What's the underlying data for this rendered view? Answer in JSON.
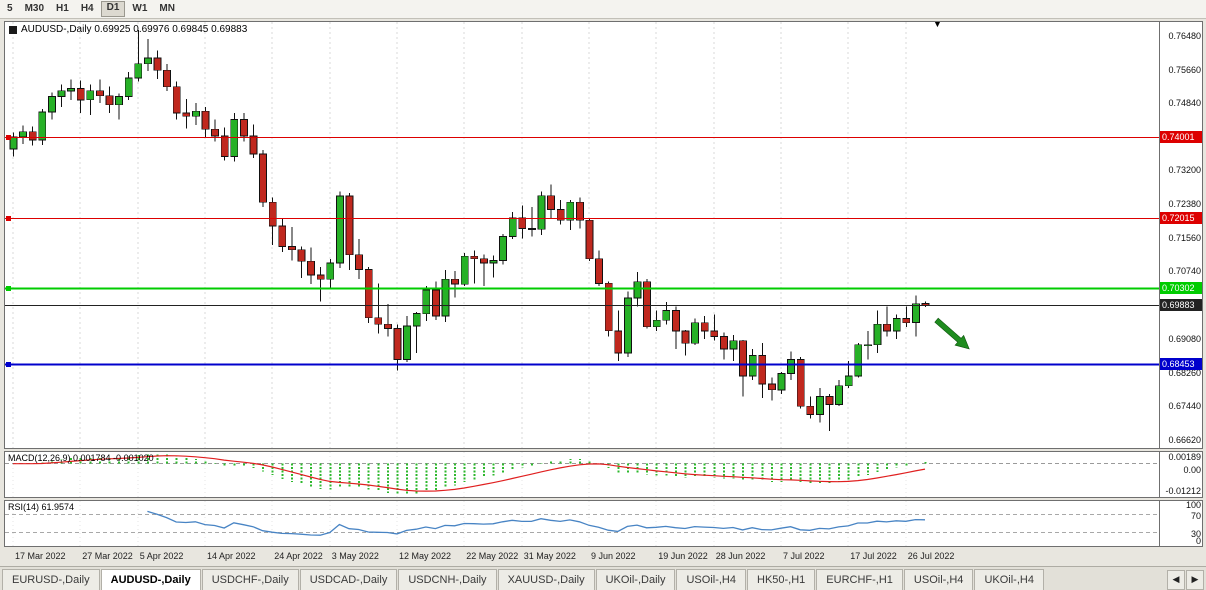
{
  "toolbar": {
    "timeframes": [
      "5",
      "M30",
      "H1",
      "H4",
      "D1",
      "W1",
      "MN"
    ],
    "active": "D1"
  },
  "chart": {
    "legend": "AUDUSD-,Daily 0.69925 0.69976 0.69845 0.69883",
    "macd_label": "MACD(12,26,9) 0.001784 -0.001020",
    "rsi_label": "RSI(14) 61.9574",
    "shift_marker": "▼"
  },
  "chart_data": {
    "type": "candlestick",
    "symbol": "AUDUSD",
    "period": "Daily",
    "title": "AUDUSD-,Daily",
    "latest_ohlc": {
      "open": 0.69925,
      "high": 0.69976,
      "low": 0.69845,
      "close": 0.69883
    },
    "y_axis": {
      "top": 0.768,
      "bottom": 0.664,
      "ticks": [
        "0.76480",
        "0.75660",
        "0.74840",
        "0.73200",
        "0.72380",
        "0.71560",
        "0.70740",
        "0.69080",
        "0.68260",
        "0.67440",
        "0.66620"
      ]
    },
    "x_axis": {
      "ticks": [
        {
          "label": "17 Mar 2022",
          "index": 0
        },
        {
          "label": "27 Mar 2022",
          "index": 7
        },
        {
          "label": "5 Apr 2022",
          "index": 13
        },
        {
          "label": "14 Apr 2022",
          "index": 20
        },
        {
          "label": "24 Apr 2022",
          "index": 27
        },
        {
          "label": "3 May 2022",
          "index": 33
        },
        {
          "label": "12 May 2022",
          "index": 40
        },
        {
          "label": "22 May 2022",
          "index": 47
        },
        {
          "label": "31 May 2022",
          "index": 53
        },
        {
          "label": "9 Jun 2022",
          "index": 60
        },
        {
          "label": "19 Jun 2022",
          "index": 67
        },
        {
          "label": "28 Jun 2022",
          "index": 73
        },
        {
          "label": "7 Jul 2022",
          "index": 80
        },
        {
          "label": "17 Jul 2022",
          "index": 87
        },
        {
          "label": "26 Jul 2022",
          "index": 93
        }
      ]
    },
    "horizontal_lines": [
      {
        "label": "0.74001",
        "price": 0.74001,
        "color": "#dd0000",
        "width": 1.4,
        "handle": true
      },
      {
        "label": "0.72015",
        "price": 0.72015,
        "color": "#dd0000",
        "width": 1.4,
        "handle": true
      },
      {
        "label": "0.70302",
        "price": 0.70302,
        "color": "#00cc00",
        "width": 2.4,
        "handle": true
      },
      {
        "label": "0.69883",
        "price": 0.69883,
        "color": "#222222",
        "width": 1,
        "handle": false
      },
      {
        "label": "0.68453",
        "price": 0.68453,
        "color": "#0000cc",
        "width": 2,
        "handle": true
      }
    ],
    "annotations": {
      "arrow": {
        "type": "trend-arrow",
        "direction": "down-right",
        "color": "#1f8c1f",
        "from": {
          "index": 96.2,
          "price": 0.6952
        },
        "to": {
          "index": 99.6,
          "price": 0.6882
        }
      }
    },
    "indicators": {
      "macd": {
        "name": "MACD",
        "params": [
          12,
          26,
          9
        ],
        "values": [
          0.001784,
          -0.00102
        ],
        "axis_labels": [
          "0.00189",
          "0.00",
          "-0.01212"
        ],
        "histogram_color": "#2db82d",
        "signal_color": "#e02020"
      },
      "rsi": {
        "name": "RSI",
        "period": 14,
        "value": 61.9574,
        "axis_labels": [
          "100",
          "70",
          "30",
          "0"
        ],
        "levels": [
          70,
          30
        ],
        "line_color": "#4884c4"
      }
    },
    "colors": {
      "bull": "#27b127",
      "bear": "#c0281e",
      "wick": "#111111",
      "grid": "#d8d8d8",
      "background": "#ffffff"
    },
    "candles": [
      [
        0.737,
        0.741,
        0.7352,
        0.74
      ],
      [
        0.74,
        0.7427,
        0.7382,
        0.7412
      ],
      [
        0.7412,
        0.7425,
        0.7378,
        0.7392
      ],
      [
        0.7392,
        0.7468,
        0.738,
        0.746
      ],
      [
        0.746,
        0.7508,
        0.7442,
        0.7498
      ],
      [
        0.7498,
        0.7527,
        0.7472,
        0.7512
      ],
      [
        0.7512,
        0.754,
        0.749,
        0.7518
      ],
      [
        0.7518,
        0.7537,
        0.7458,
        0.749
      ],
      [
        0.749,
        0.7528,
        0.7453,
        0.7512
      ],
      [
        0.7512,
        0.754,
        0.7482,
        0.75
      ],
      [
        0.75,
        0.7522,
        0.7458,
        0.7478
      ],
      [
        0.7478,
        0.7506,
        0.7442,
        0.7498
      ],
      [
        0.7498,
        0.7558,
        0.749,
        0.7543
      ],
      [
        0.7543,
        0.7661,
        0.7535,
        0.7578
      ],
      [
        0.7578,
        0.7638,
        0.756,
        0.7592
      ],
      [
        0.7592,
        0.761,
        0.7541,
        0.7562
      ],
      [
        0.7562,
        0.7578,
        0.7512,
        0.7522
      ],
      [
        0.7522,
        0.7535,
        0.7442,
        0.7458
      ],
      [
        0.7458,
        0.7492,
        0.742,
        0.745
      ],
      [
        0.745,
        0.7482,
        0.7428,
        0.7462
      ],
      [
        0.7462,
        0.7472,
        0.7398,
        0.7418
      ],
      [
        0.7418,
        0.7442,
        0.7388,
        0.7402
      ],
      [
        0.7402,
        0.7422,
        0.7342,
        0.7352
      ],
      [
        0.7352,
        0.7458,
        0.734,
        0.7442
      ],
      [
        0.7442,
        0.7458,
        0.7388,
        0.7402
      ],
      [
        0.7402,
        0.743,
        0.7348,
        0.7358
      ],
      [
        0.7358,
        0.7368,
        0.7228,
        0.724
      ],
      [
        0.724,
        0.7252,
        0.7135,
        0.7182
      ],
      [
        0.7182,
        0.72,
        0.7118,
        0.7132
      ],
      [
        0.7132,
        0.718,
        0.7098,
        0.7124
      ],
      [
        0.7124,
        0.7132,
        0.7055,
        0.7096
      ],
      [
        0.7096,
        0.713,
        0.704,
        0.7062
      ],
      [
        0.7062,
        0.7082,
        0.6998,
        0.7052
      ],
      [
        0.7052,
        0.7102,
        0.7028,
        0.7092
      ],
      [
        0.7092,
        0.7266,
        0.708,
        0.7255
      ],
      [
        0.7255,
        0.7262,
        0.7075,
        0.7112
      ],
      [
        0.7112,
        0.715,
        0.7052,
        0.7076
      ],
      [
        0.7076,
        0.7082,
        0.6945,
        0.6958
      ],
      [
        0.6958,
        0.7042,
        0.692,
        0.6942
      ],
      [
        0.6942,
        0.6992,
        0.6912,
        0.6932
      ],
      [
        0.6932,
        0.6942,
        0.6829,
        0.6856
      ],
      [
        0.6856,
        0.6962,
        0.685,
        0.6938
      ],
      [
        0.6938,
        0.6972,
        0.6872,
        0.6968
      ],
      [
        0.6968,
        0.7036,
        0.695,
        0.7026
      ],
      [
        0.7026,
        0.7046,
        0.6952,
        0.6962
      ],
      [
        0.6962,
        0.7074,
        0.6948,
        0.7052
      ],
      [
        0.7052,
        0.7072,
        0.7008,
        0.704
      ],
      [
        0.704,
        0.7116,
        0.7036,
        0.7108
      ],
      [
        0.7108,
        0.7122,
        0.7042,
        0.7102
      ],
      [
        0.7102,
        0.7112,
        0.7036,
        0.7092
      ],
      [
        0.7092,
        0.711,
        0.7056,
        0.7098
      ],
      [
        0.7098,
        0.7162,
        0.7088,
        0.7156
      ],
      [
        0.7156,
        0.7216,
        0.715,
        0.7202
      ],
      [
        0.7202,
        0.7232,
        0.7152,
        0.7176
      ],
      [
        0.7176,
        0.7228,
        0.7156,
        0.7174
      ],
      [
        0.7174,
        0.7266,
        0.716,
        0.7256
      ],
      [
        0.7256,
        0.7283,
        0.7202,
        0.7222
      ],
      [
        0.7222,
        0.7246,
        0.7186,
        0.7196
      ],
      [
        0.7196,
        0.7246,
        0.7172,
        0.724
      ],
      [
        0.724,
        0.7252,
        0.7176,
        0.7196
      ],
      [
        0.7196,
        0.7202,
        0.7096,
        0.7102
      ],
      [
        0.7102,
        0.7122,
        0.7036,
        0.7042
      ],
      [
        0.7042,
        0.7046,
        0.6912,
        0.6926
      ],
      [
        0.6926,
        0.6976,
        0.6852,
        0.6872
      ],
      [
        0.6872,
        0.7022,
        0.6862,
        0.7006
      ],
      [
        0.7006,
        0.707,
        0.6986,
        0.7046
      ],
      [
        0.7046,
        0.7052,
        0.6932,
        0.6936
      ],
      [
        0.6936,
        0.6976,
        0.6926,
        0.6952
      ],
      [
        0.6952,
        0.6996,
        0.6942,
        0.6976
      ],
      [
        0.6976,
        0.6986,
        0.6882,
        0.6926
      ],
      [
        0.6926,
        0.6928,
        0.6866,
        0.6896
      ],
      [
        0.6896,
        0.6956,
        0.6892,
        0.6946
      ],
      [
        0.6946,
        0.6962,
        0.6906,
        0.6926
      ],
      [
        0.6926,
        0.6966,
        0.6902,
        0.6912
      ],
      [
        0.6912,
        0.6922,
        0.6856,
        0.6882
      ],
      [
        0.6882,
        0.6916,
        0.6852,
        0.6902
      ],
      [
        0.6902,
        0.6904,
        0.6766,
        0.6816
      ],
      [
        0.6816,
        0.6882,
        0.6806,
        0.6866
      ],
      [
        0.6866,
        0.6896,
        0.6762,
        0.6796
      ],
      [
        0.6796,
        0.6812,
        0.6756,
        0.6782
      ],
      [
        0.6782,
        0.6826,
        0.6772,
        0.6822
      ],
      [
        0.6822,
        0.6876,
        0.6806,
        0.6856
      ],
      [
        0.6856,
        0.6862,
        0.6736,
        0.6742
      ],
      [
        0.6742,
        0.6766,
        0.6712,
        0.6722
      ],
      [
        0.6722,
        0.6786,
        0.6702,
        0.6766
      ],
      [
        0.6766,
        0.6772,
        0.6681,
        0.6746
      ],
      [
        0.6746,
        0.6806,
        0.6742,
        0.6792
      ],
      [
        0.6792,
        0.6852,
        0.6786,
        0.6816
      ],
      [
        0.6816,
        0.6896,
        0.6812,
        0.6892
      ],
      [
        0.6892,
        0.6926,
        0.6856,
        0.6892
      ],
      [
        0.6892,
        0.6976,
        0.6872,
        0.6942
      ],
      [
        0.6942,
        0.6986,
        0.6912,
        0.6926
      ],
      [
        0.6926,
        0.6966,
        0.6906,
        0.6956
      ],
      [
        0.6956,
        0.6986,
        0.6936,
        0.6946
      ],
      [
        0.6946,
        0.7012,
        0.6912,
        0.6992
      ],
      [
        0.69925,
        0.69976,
        0.69845,
        0.69883
      ]
    ]
  },
  "tabs": {
    "active_index": 1,
    "scroll_left": "◀",
    "scroll_right": "▶",
    "items": [
      "EURUSD-,Daily",
      "AUDUSD-,Daily",
      "USDCHF-,Daily",
      "USDCAD-,Daily",
      "USDCNH-,Daily",
      "XAUUSD-,Daily",
      "UKOil-,Daily",
      "USOil-,H4",
      "HK50-,H1",
      "EURCHF-,H1",
      "USOil-,H4",
      "UKOil-,H4"
    ]
  }
}
